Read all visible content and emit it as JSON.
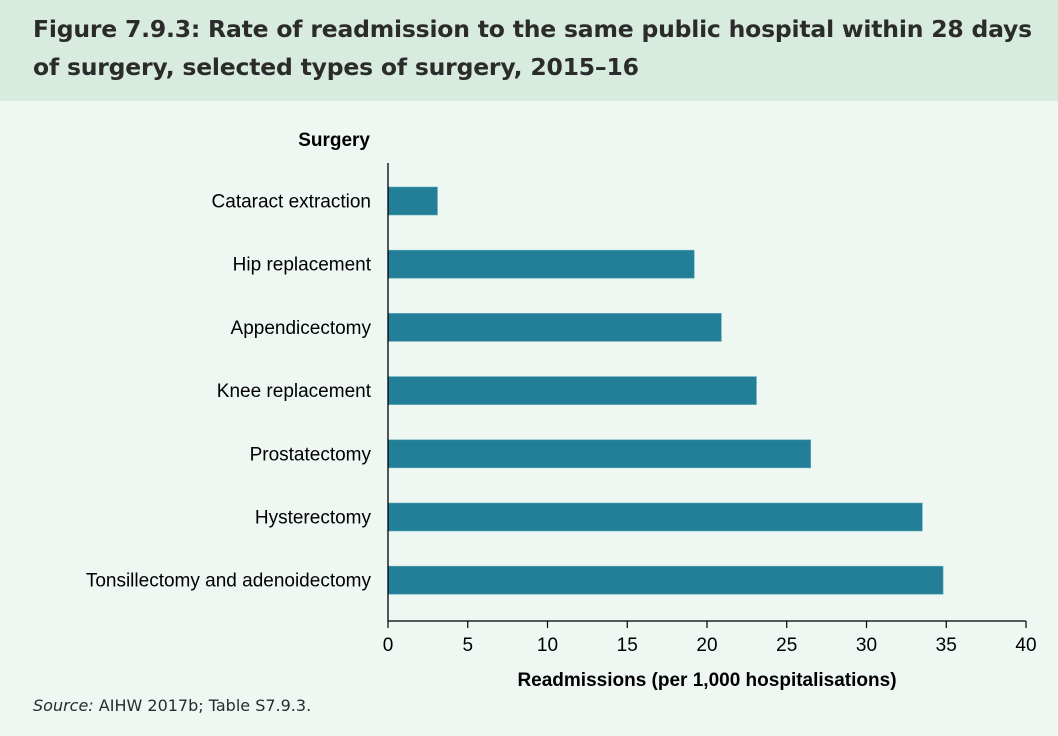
{
  "title": "Figure 7.9.3: Rate of readmission to the same public hospital within 28 days of surgery, selected types of surgery, 2015–16",
  "source": {
    "label": "Source:",
    "text": " AIHW 2017b; Table S7.9.3."
  },
  "colors": {
    "bar": "#237f97",
    "header_bg": "#d7ebdf",
    "page_bg": "#eef7f2"
  },
  "chart_data": {
    "type": "bar",
    "orientation": "horizontal",
    "title": "Rate of readmission to the same public hospital within 28 days of surgery, selected types of surgery, 2015–16",
    "ylabel": "Surgery",
    "xlabel": "Readmissions (per 1,000 hospitalisations)",
    "categories": [
      "Cataract extraction",
      "Hip replacement",
      "Appendicectomy",
      "Knee replacement",
      "Prostatectomy",
      "Hysterectomy",
      "Tonsillectomy and adenoidectomy"
    ],
    "values": [
      3.1,
      19.2,
      20.9,
      23.1,
      26.5,
      33.5,
      34.8
    ],
    "xlim": [
      0,
      40
    ],
    "xticks": [
      0,
      5,
      10,
      15,
      20,
      25,
      30,
      35,
      40
    ],
    "grid": false,
    "legend": "none"
  }
}
